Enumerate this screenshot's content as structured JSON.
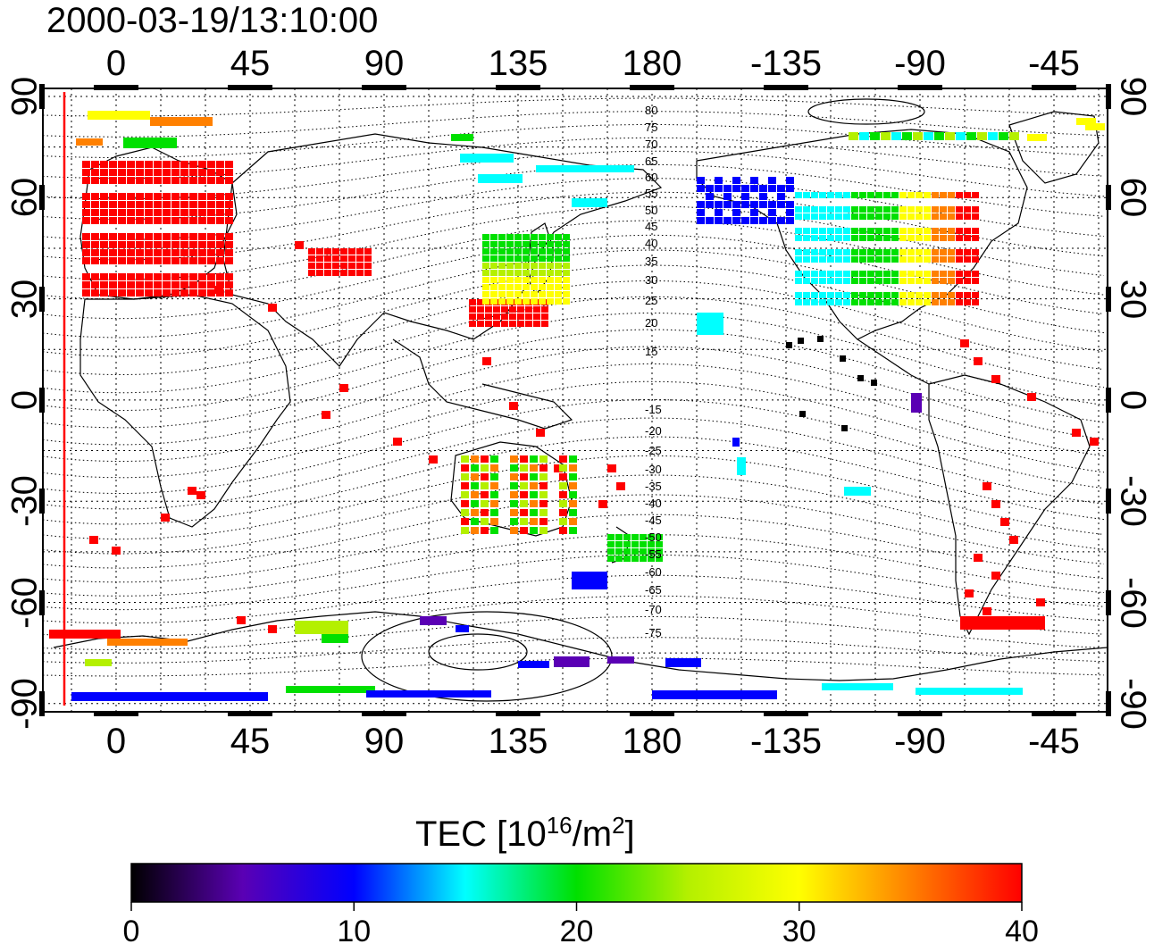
{
  "timestamp": "2000-03-19/13:10:00",
  "top_lon_ticks": [
    "0",
    "45",
    "90",
    "135",
    "180",
    "-135",
    "-90",
    "-45"
  ],
  "bottom_lon_ticks": [
    "0",
    "45",
    "90",
    "135",
    "180",
    "-135",
    "-90",
    "-45"
  ],
  "left_lat_ticks": [
    "90",
    "60",
    "30",
    "0",
    "-30",
    "-60",
    "-90"
  ],
  "right_lat_ticks": [
    "90",
    "60",
    "30",
    "0",
    "-30",
    "-60",
    "-90"
  ],
  "contour_labels": [
    "80",
    "75",
    "70",
    "65",
    "60",
    "55",
    "50",
    "45",
    "40",
    "35",
    "30",
    "25",
    "20",
    "15",
    "-15",
    "-20",
    "-25",
    "-30",
    "-35",
    "-40",
    "-45",
    "-50",
    "-55",
    "-60",
    "-65",
    "-70",
    "-75"
  ],
  "colorbar": {
    "label_prefix": "TEC  [10",
    "label_sup1": "16",
    "label_mid": "/m",
    "label_sup2": "2",
    "label_suffix": "]",
    "ticks": [
      "0",
      "10",
      "20",
      "30",
      "40"
    ],
    "range": [
      0,
      40
    ]
  },
  "colors": {
    "tec_0": "#000000",
    "tec_5": "#5a00b4",
    "tec_10": "#0000ff",
    "tec_15": "#00ffff",
    "tec_20": "#00e000",
    "tec_25": "#b4f000",
    "tec_30": "#ffff00",
    "tec_35": "#ff8000",
    "tec_40": "#ff0000"
  }
}
